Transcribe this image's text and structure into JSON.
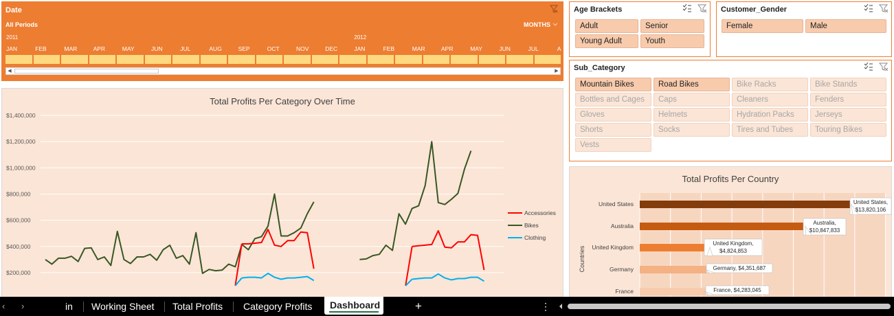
{
  "timeline": {
    "title": "Date",
    "periods_label": "All Periods",
    "level_label": "MONTHS",
    "years": [
      "2011",
      "2012"
    ],
    "months": [
      "JAN",
      "FEB",
      "MAR",
      "APR",
      "MAY",
      "JUN",
      "JUL",
      "AUG",
      "SEP",
      "OCT",
      "NOV",
      "DEC",
      "JAN",
      "FEB",
      "MAR",
      "APR",
      "MAY",
      "JUN",
      "JUL",
      "A"
    ]
  },
  "age_slicer": {
    "title": "Age Brackets",
    "items": [
      "Adult",
      "Senior",
      "Young Adult",
      "Youth"
    ]
  },
  "gender_slicer": {
    "title": "Customer_Gender",
    "items": [
      "Female",
      "Male"
    ]
  },
  "subcategory_slicer": {
    "title": "Sub_Category",
    "items": [
      "Mountain Bikes",
      "Road Bikes",
      "Bike Racks",
      "Bike Stands",
      "Bottles and Cages",
      "Caps",
      "Cleaners",
      "Fenders",
      "Gloves",
      "Helmets",
      "Hydration Packs",
      "Jerseys",
      "Shorts",
      "Socks",
      "Tires and Tubes",
      "Touring Bikes",
      "Vests"
    ],
    "selected": [
      "Mountain Bikes",
      "Road Bikes"
    ]
  },
  "chart_data": [
    {
      "type": "line",
      "title": "Total Profits Per Category Over Time",
      "ytick_labels": [
        "$200,000",
        "$400,000",
        "$600,000",
        "$800,000",
        "$1,000,000",
        "$1,200,000",
        "$1,400,000"
      ],
      "ylim": [
        100000,
        1400000
      ],
      "legend_position": "right",
      "series": [
        {
          "name": "Bikes",
          "color": "#375623",
          "segments": [
            [
              300000,
              265000,
              310000,
              310000,
              325000,
              285000,
              385000,
              390000,
              300000,
              320000,
              255000,
              515000,
              300000,
              270000,
              320000,
              320000,
              340000,
              295000,
              375000,
              410000,
              310000,
              330000,
              265000,
              505000,
              195000,
              225000,
              215000,
              220000,
              265000,
              245000,
              415000,
              375000,
              460000,
              475000,
              555000,
              800000,
              480000,
              480000,
              505000,
              540000,
              650000,
              740000
            ],
            [
              300000,
              305000,
              330000,
              340000,
              410000,
              370000,
              650000,
              570000,
              690000,
              710000,
              865000,
              1200000,
              735000,
              720000,
              760000,
              805000,
              990000,
              1130000
            ]
          ]
        },
        {
          "name": "Accessories",
          "color": "#ff0000",
          "segments": [
            [
              420000,
              420000,
              425000,
              430000,
              530000,
              410000,
              400000,
              445000,
              445000,
              510000,
              505000,
              230000
            ],
            [
              400000,
              405000,
              410000,
              415000,
              520000,
              395000,
              390000,
              435000,
              435000,
              490000,
              485000,
              220000
            ]
          ]
        },
        {
          "name": "Clothing",
          "color": "#00b0f0",
          "segments": [
            [
              160000,
              165000,
              165000,
              160000,
              195000,
              165000,
              150000,
              160000,
              160000,
              165000,
              170000,
              140000
            ],
            [
              150000,
              155000,
              160000,
              160000,
              190000,
              160000,
              145000,
              155000,
              155000,
              165000,
              165000,
              135000
            ]
          ]
        }
      ]
    },
    {
      "type": "bar",
      "title": "Total Profits Per Country",
      "ylabel": "Countries",
      "categories": [
        "United States",
        "Australia",
        "United Kingdom",
        "Germany",
        "France"
      ],
      "values": [
        13820106,
        10847833,
        4824853,
        4351687,
        4283045
      ],
      "data_labels": [
        "United States,\n$13,820,106",
        "Australia,\n$10,847,833",
        "United Kingdom,\n$4,824,853",
        "Germany, $4,351,687",
        "France, $4,283,045"
      ],
      "colors": [
        "#843c0c",
        "#c55a11",
        "#ed7d31",
        "#f4b183",
        "#f8cbad"
      ]
    }
  ],
  "sheet_tabs": {
    "nav_prev": "‹",
    "nav_next": "›",
    "partial_tab": "in",
    "tabs": [
      "Working Sheet",
      "Total Profits",
      "Category Profits"
    ],
    "active_tab": "Dashboard",
    "add_sheet": "+",
    "more": "⋮"
  }
}
